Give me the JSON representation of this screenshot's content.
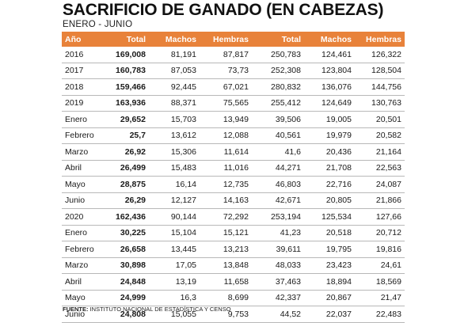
{
  "title": "SACRIFICIO DE GANADO (EN CABEZAS)",
  "subtitle": "ENERO - JUNIO",
  "headers": [
    "Año",
    "Total",
    "Machos",
    "Hembras",
    "Total",
    "Machos",
    "Hembras"
  ],
  "rows": [
    [
      "2016",
      "169,008",
      "81,191",
      "87,817",
      "250,783",
      "124,461",
      "126,322"
    ],
    [
      "2017",
      "160,783",
      "87,053",
      "73,73",
      "252,308",
      "123,804",
      "128,504"
    ],
    [
      "2018",
      "159,466",
      "92,445",
      "67,021",
      "280,832",
      "136,076",
      "144,756"
    ],
    [
      "2019",
      "163,936",
      "88,371",
      "75,565",
      "255,412",
      "124,649",
      "130,763"
    ],
    [
      "Enero",
      "29,652",
      "15,703",
      "13,949",
      "39,506",
      "19,005",
      "20,501"
    ],
    [
      "Febrero",
      "25,7",
      "13,612",
      "12,088",
      "40,561",
      "19,979",
      "20,582"
    ],
    [
      "Marzo",
      "26,92",
      "15,306",
      "11,614",
      "41,6",
      "20,436",
      "21,164"
    ],
    [
      "Abril",
      "26,499",
      "15,483",
      "11,016",
      "44,271",
      "21,708",
      "22,563"
    ],
    [
      "Mayo",
      "28,875",
      "16,14",
      "12,735",
      "46,803",
      "22,716",
      "24,087"
    ],
    [
      "Junio",
      "26,29",
      "12,127",
      "14,163",
      "42,671",
      "20,805",
      "21,866"
    ],
    [
      "2020",
      "162,436",
      "90,144",
      "72,292",
      "253,194",
      "125,534",
      "127,66"
    ],
    [
      "Enero",
      "30,225",
      "15,104",
      "15,121",
      "41,23",
      "20,518",
      "20,712"
    ],
    [
      "Febrero",
      "26,658",
      "13,445",
      "13,213",
      "39,611",
      "19,795",
      "19,816"
    ],
    [
      "Marzo",
      "30,898",
      "17,05",
      "13,848",
      "48,033",
      "23,423",
      "24,61"
    ],
    [
      "Abril",
      "24,848",
      "13,19",
      "11,658",
      "37,463",
      "18,894",
      "18,569"
    ],
    [
      "Mayo",
      "24,999",
      "16,3",
      "8,699",
      "42,337",
      "20,867",
      "21,47"
    ],
    [
      "Junio",
      "24,808",
      "15,055",
      "9,753",
      "44,52",
      "22,037",
      "22,483"
    ]
  ],
  "source": {
    "label": "FUENTE:",
    "text": " INSTITUTO NACIONAL DE ESTADÍSTICA Y CENSO"
  },
  "colors": {
    "header_bg": "#e8823a",
    "header_text": "#ffffff"
  }
}
